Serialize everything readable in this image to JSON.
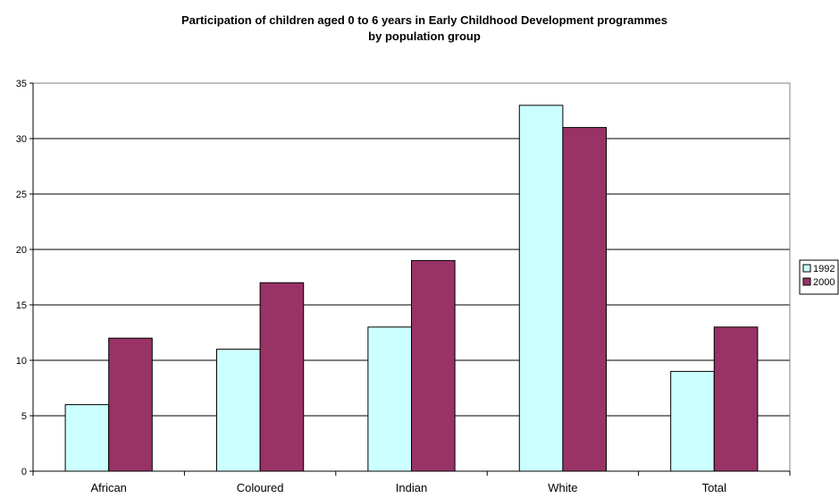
{
  "chart_data": {
    "type": "bar",
    "title": "Participation of children aged 0 to 6 years in Early Childhood Development programmes",
    "subtitle": "by population group",
    "xlabel": "",
    "ylabel": "",
    "categories": [
      "African",
      "Coloured",
      "Indian",
      "White",
      "Total"
    ],
    "series": [
      {
        "name": "1992",
        "values": [
          6,
          11,
          13,
          33,
          9
        ],
        "color": "#ccffff"
      },
      {
        "name": "2000",
        "values": [
          12,
          17,
          19,
          31,
          13
        ],
        "color": "#993366"
      }
    ],
    "ylim": [
      0,
      35
    ],
    "yticks": [
      "0",
      "5",
      "10",
      "15",
      "20",
      "25",
      "30",
      "35"
    ],
    "grid": true,
    "legend": "right"
  }
}
